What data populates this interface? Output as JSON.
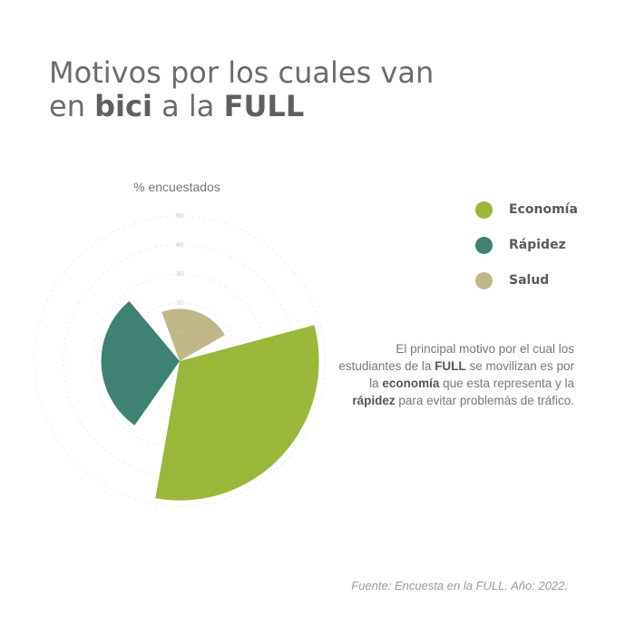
{
  "title": {
    "line1": "Motivos por los cuales van",
    "line2_pre": "en",
    "line2_bold1": "bici",
    "line2_mid": "a la",
    "line2_bold2": "FULL"
  },
  "chart_data": {
    "type": "polar-area",
    "axis_label": "% encuestados",
    "r_ticks": [
      10,
      20,
      30,
      40,
      50
    ],
    "rlim": [
      0,
      50
    ],
    "grid": true,
    "legend_position": "right",
    "categories": [
      "Economía",
      "Rápidez",
      "Salud"
    ],
    "values": [
      48,
      27,
      18
    ],
    "colors": [
      "#9ab73a",
      "#3d8272",
      "#c0b787"
    ]
  },
  "note": {
    "p1": "El principal motivo por el cual los estudiantes de la ",
    "b1": "FULL",
    "p2": " se movilizan es por la ",
    "b2": "economía",
    "p3": " que esta representa y la ",
    "b3": "rápidez",
    "p4": " para evitar problemás de tráfico."
  },
  "source": "Fuente: Encuesta en la FULL. Año: 2022."
}
